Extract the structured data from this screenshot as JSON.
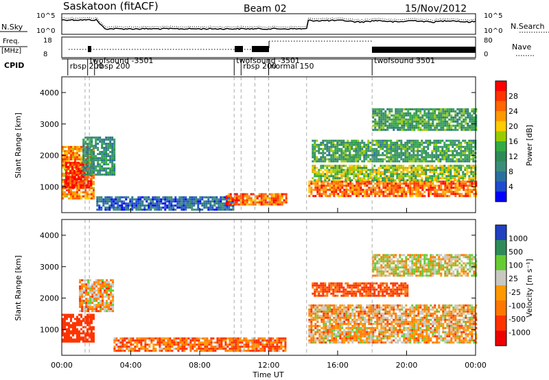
{
  "header": {
    "station": "Saskatoon (fitACF)",
    "beam": "Beam 02",
    "date": "15/Nov/2012"
  },
  "noise_panel": {
    "left_label": "N.Sky",
    "right_label": "N.Search",
    "left_ticks": [
      "10^5",
      "10^0"
    ],
    "right_ticks": [
      "10^5",
      "10^0"
    ]
  },
  "freq_panel": {
    "left_label_top": "Freq.",
    "left_label_bottom": "[MHz]",
    "right_label": "Nave",
    "left_ticks": [
      "18",
      "8"
    ],
    "right_ticks": [
      "80",
      "0"
    ]
  },
  "cpid_panel": {
    "label": "CPID",
    "labels": [
      {
        "text": "rbsp 200",
        "x": 0.35
      },
      {
        "text": "twofsound -3501",
        "x": 1.5
      },
      {
        "text": "rbsp 200",
        "x": 1.9
      },
      {
        "text": "twofsound -3501",
        "x": 10.0
      },
      {
        "text": "rbsp 200",
        "x": 10.4
      },
      {
        "text": "normal 150",
        "x": 12.0
      },
      {
        "text": "twofsound 3501",
        "x": 18.0
      }
    ]
  },
  "xaxis": {
    "label": "Time UT",
    "ticks": [
      "00:00",
      "04:00",
      "08:00",
      "12:00",
      "16:00",
      "20:00",
      "00:00"
    ]
  },
  "power_colorbar": {
    "title": "Power [dB]",
    "labels": [
      "28",
      "24",
      "20",
      "16",
      "12",
      "8",
      "4"
    ],
    "colors": [
      "#ff0000",
      "#ff3300",
      "#ff6600",
      "#ff9900",
      "#ffcc00",
      "#99cc00",
      "#33aa44",
      "#2e8b57",
      "#3c8c7a",
      "#2b6fa0",
      "#1f4bd0",
      "#0000ff"
    ]
  },
  "velocity_colorbar": {
    "title": "Velocity [m s⁻¹]",
    "labels": [
      "1000",
      "500",
      "100",
      "25",
      "-25",
      "-100",
      "-500",
      "-1000"
    ],
    "colors": [
      "#2040c0",
      "#2e8b57",
      "#66cc33",
      "#c8c8c0",
      "#ff9900",
      "#ff7700",
      "#ff3300",
      "#ee0000"
    ]
  },
  "chart_data": [
    {
      "type": "heatmap",
      "title": "Power",
      "ylabel": "Slant Range [km]",
      "xlabel": "Time UT",
      "ylim": [
        180,
        4500
      ],
      "xlim": [
        0,
        24
      ],
      "y_ticks": [
        1000,
        2000,
        3000,
        4000
      ],
      "value_range": [
        0,
        30
      ],
      "regions": [
        {
          "t": [
            0.0,
            1.8
          ],
          "r": [
            600,
            2300
          ],
          "v": 22
        },
        {
          "t": [
            0.2,
            1.7
          ],
          "r": [
            1000,
            1800
          ],
          "v": 28
        },
        {
          "t": [
            1.2,
            3.0
          ],
          "r": [
            1400,
            2600
          ],
          "v": 10
        },
        {
          "t": [
            2.0,
            10.0
          ],
          "r": [
            300,
            700
          ],
          "v": 6
        },
        {
          "t": [
            9.5,
            13.0
          ],
          "r": [
            450,
            800
          ],
          "v": 24
        },
        {
          "t": [
            14.3,
            24.0
          ],
          "r": [
            700,
            1200
          ],
          "v": 24
        },
        {
          "t": [
            14.5,
            24.0
          ],
          "r": [
            1200,
            1700
          ],
          "v": 16
        },
        {
          "t": [
            14.5,
            24.0
          ],
          "r": [
            1800,
            2500
          ],
          "v": 12
        },
        {
          "t": [
            18.0,
            24.0
          ],
          "r": [
            2800,
            3500
          ],
          "v": 12
        }
      ]
    },
    {
      "type": "heatmap",
      "title": "Velocity",
      "ylabel": "Slant Range [km]",
      "xlabel": "Time UT",
      "ylim": [
        180,
        4500
      ],
      "xlim": [
        0,
        24
      ],
      "y_ticks": [
        1000,
        2000,
        3000,
        4000
      ],
      "value_range": [
        -1000,
        1000
      ],
      "regions": [
        {
          "t": [
            0.0,
            1.8
          ],
          "r": [
            600,
            1500
          ],
          "v": -300
        },
        {
          "t": [
            1.0,
            3.0
          ],
          "r": [
            1600,
            2600
          ],
          "v": 0
        },
        {
          "t": [
            3.0,
            13.0
          ],
          "r": [
            300,
            750
          ],
          "v": -80
        },
        {
          "t": [
            14.3,
            24.0
          ],
          "r": [
            600,
            1800
          ],
          "v": 0
        },
        {
          "t": [
            14.5,
            20.0
          ],
          "r": [
            2100,
            2500
          ],
          "v": -150
        },
        {
          "t": [
            18.0,
            24.0
          ],
          "r": [
            2700,
            3400
          ],
          "v": 60
        }
      ]
    }
  ]
}
